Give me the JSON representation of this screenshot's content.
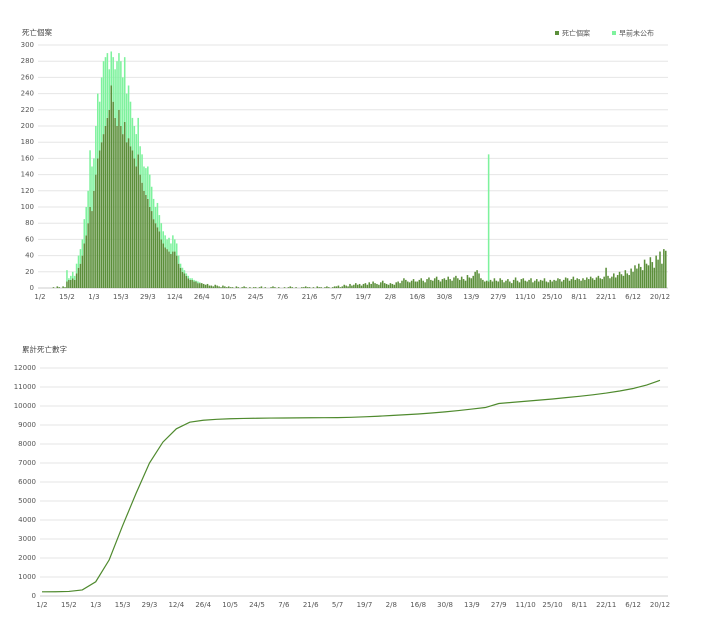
{
  "chart_data": [
    {
      "type": "bar",
      "title": "死亡個案",
      "stacked": true,
      "grid": true,
      "legend": "top-right",
      "ylim": [
        0,
        300
      ],
      "yticks": [
        0,
        20,
        40,
        60,
        80,
        100,
        120,
        140,
        160,
        180,
        200,
        220,
        240,
        260,
        280,
        300
      ],
      "categories": [
        "1/2",
        null,
        null,
        null,
        null,
        null,
        null,
        null,
        null,
        null,
        null,
        null,
        null,
        null,
        "15/2",
        null,
        null,
        null,
        null,
        null,
        null,
        null,
        null,
        null,
        null,
        null,
        null,
        null,
        "1/3",
        null,
        null,
        null,
        null,
        null,
        null,
        null,
        null,
        null,
        null,
        null,
        null,
        null,
        "15/3",
        null,
        null,
        null,
        null,
        null,
        null,
        null,
        null,
        null,
        null,
        null,
        null,
        null,
        "29/3",
        null,
        null,
        null,
        null,
        null,
        null,
        null,
        null,
        null,
        null,
        null,
        null,
        null,
        "12/4",
        null,
        null,
        null,
        null,
        null,
        null,
        null,
        null,
        null,
        null,
        null,
        null,
        null,
        "26/4",
        null,
        null,
        null,
        null,
        null,
        null,
        null,
        null,
        null,
        null,
        null,
        null,
        null,
        "10/5",
        null,
        null,
        null,
        null,
        null,
        null,
        null,
        null,
        null,
        null,
        null,
        null,
        null,
        "24/5",
        null,
        null,
        null,
        null,
        null,
        null,
        null,
        null,
        null,
        null,
        null,
        null,
        null,
        "7/6",
        null,
        null,
        null,
        null,
        null,
        null,
        null,
        null,
        null,
        null,
        null,
        null,
        null,
        "21/6",
        null,
        null,
        null,
        null,
        null,
        null,
        null,
        null,
        null,
        null,
        null,
        null,
        null,
        "5/7",
        null,
        null,
        null,
        null,
        null,
        null,
        null,
        null,
        null,
        null,
        null,
        null,
        null,
        "19/7",
        null,
        null,
        null,
        null,
        null,
        null,
        null,
        null,
        null,
        null,
        null,
        null,
        null,
        "2/8",
        null,
        null,
        null,
        null,
        null,
        null,
        null,
        null,
        null,
        null,
        null,
        null,
        null,
        "16/8",
        null,
        null,
        null,
        null,
        null,
        null,
        null,
        null,
        null,
        null,
        null,
        null,
        null,
        "30/8",
        null,
        null,
        null,
        null,
        null,
        null,
        null,
        null,
        null,
        null,
        null,
        null,
        null,
        "13/9",
        null,
        null,
        null,
        null,
        null,
        null,
        null,
        null,
        null,
        null,
        null,
        null,
        null,
        "27/9",
        null,
        null,
        null,
        null,
        null,
        null,
        null,
        null,
        null,
        null,
        null,
        null,
        null,
        "11/10",
        null,
        null,
        null,
        null,
        null,
        null,
        null,
        null,
        null,
        null,
        null,
        null,
        null,
        "25/10",
        null,
        null,
        null,
        null,
        null,
        null,
        null,
        null,
        null,
        null,
        null,
        null,
        null,
        "8/11",
        null,
        null,
        null,
        null,
        null,
        null,
        null,
        null,
        null,
        null,
        null,
        null,
        null,
        "22/11",
        null,
        null,
        null,
        null,
        null,
        null,
        null,
        null,
        null,
        null,
        null,
        null,
        null,
        "6/12",
        null,
        null,
        null,
        null,
        null,
        null,
        null,
        null,
        null,
        null,
        null,
        null,
        null,
        "20/12",
        null,
        null,
        null
      ],
      "series": [
        {
          "name": "死亡個案",
          "color": "#5b8f3a",
          "values": [
            0,
            0,
            0,
            0,
            0,
            0,
            0,
            1,
            0,
            2,
            1,
            0,
            2,
            1,
            8,
            10,
            10,
            12,
            10,
            18,
            25,
            30,
            40,
            55,
            65,
            80,
            100,
            95,
            120,
            140,
            160,
            170,
            180,
            190,
            200,
            210,
            220,
            250,
            230,
            210,
            200,
            220,
            200,
            190,
            205,
            180,
            185,
            175,
            170,
            160,
            150,
            165,
            140,
            130,
            120,
            115,
            110,
            100,
            95,
            85,
            80,
            75,
            70,
            60,
            55,
            50,
            48,
            45,
            42,
            45,
            45,
            40,
            30,
            25,
            20,
            18,
            15,
            12,
            10,
            10,
            8,
            8,
            6,
            6,
            6,
            5,
            4,
            5,
            3,
            3,
            2,
            4,
            3,
            2,
            1,
            3,
            2,
            1,
            2,
            1,
            1,
            0,
            2,
            1,
            0,
            1,
            2,
            1,
            0,
            1,
            0,
            1,
            1,
            0,
            1,
            2,
            0,
            1,
            0,
            0,
            1,
            2,
            1,
            0,
            1,
            0,
            0,
            1,
            0,
            1,
            2,
            1,
            0,
            1,
            0,
            0,
            1,
            1,
            2,
            1,
            1,
            0,
            1,
            0,
            2,
            1,
            1,
            0,
            1,
            2,
            1,
            0,
            1,
            2,
            2,
            3,
            1,
            2,
            4,
            3,
            2,
            5,
            3,
            4,
            6,
            4,
            5,
            3,
            5,
            6,
            4,
            7,
            5,
            8,
            6,
            5,
            4,
            7,
            9,
            6,
            5,
            4,
            6,
            5,
            4,
            7,
            8,
            6,
            9,
            12,
            10,
            8,
            7,
            9,
            11,
            8,
            8,
            10,
            12,
            9,
            7,
            11,
            13,
            10,
            9,
            12,
            14,
            10,
            8,
            11,
            12,
            10,
            14,
            11,
            9,
            13,
            15,
            12,
            10,
            14,
            11,
            9,
            16,
            13,
            12,
            15,
            20,
            22,
            18,
            12,
            10,
            8,
            9,
            8,
            10,
            8,
            12,
            9,
            8,
            12,
            10,
            7,
            9,
            11,
            8,
            6,
            10,
            13,
            9,
            7,
            11,
            12,
            9,
            8,
            10,
            12,
            7,
            9,
            11,
            8,
            10,
            9,
            12,
            8,
            7,
            10,
            8,
            10,
            9,
            12,
            11,
            8,
            10,
            13,
            12,
            9,
            11,
            14,
            10,
            12,
            11,
            9,
            12,
            10,
            13,
            11,
            14,
            12,
            10,
            13,
            15,
            12,
            11,
            14,
            25,
            15,
            12,
            14,
            18,
            13,
            16,
            20,
            17,
            15,
            22,
            18,
            16,
            24,
            20,
            28,
            24,
            30,
            26,
            22,
            35,
            30,
            28,
            38,
            32,
            25,
            40,
            35,
            45,
            30,
            48,
            46
          ]
        },
        {
          "name": "早前未公布",
          "color": "#7ef29d",
          "values": [
            0,
            0,
            0,
            0,
            0,
            0,
            0,
            0,
            0,
            0,
            0,
            0,
            0,
            0,
            14,
            2,
            5,
            8,
            5,
            12,
            15,
            18,
            20,
            30,
            35,
            40,
            70,
            55,
            40,
            60,
            80,
            60,
            80,
            90,
            85,
            80,
            50,
            42,
            55,
            60,
            80,
            70,
            80,
            70,
            80,
            60,
            65,
            55,
            40,
            40,
            40,
            45,
            35,
            35,
            30,
            33,
            40,
            40,
            30,
            25,
            20,
            30,
            20,
            20,
            15,
            15,
            12,
            17,
            13,
            20,
            15,
            15,
            10,
            5,
            5,
            4,
            3,
            3,
            2,
            2,
            2,
            1,
            2,
            1,
            0,
            0,
            0,
            0,
            0,
            0,
            0,
            0,
            0,
            0,
            0,
            0,
            0,
            0,
            0,
            0,
            0,
            0,
            0,
            0,
            0,
            0,
            0,
            0,
            0,
            0,
            0,
            0,
            0,
            0,
            0,
            0,
            0,
            0,
            0,
            0,
            0,
            0,
            0,
            0,
            0,
            0,
            0,
            0,
            0,
            0,
            0,
            0,
            0,
            0,
            0,
            0,
            0,
            0,
            0,
            0,
            0,
            0,
            0,
            0,
            0,
            0,
            0,
            0,
            0,
            0,
            0,
            0,
            0,
            0,
            0,
            0,
            0,
            0,
            0,
            0,
            0,
            0,
            0,
            0,
            0,
            0,
            0,
            0,
            0,
            0,
            0,
            0,
            0,
            0,
            0,
            0,
            0,
            0,
            0,
            0,
            0,
            0,
            0,
            0,
            0,
            0,
            0,
            0,
            0,
            0,
            0,
            0,
            0,
            0,
            0,
            0,
            0,
            0,
            0,
            0,
            0,
            0,
            0,
            0,
            0,
            0,
            0,
            0,
            0,
            0,
            0,
            0,
            0,
            0,
            0,
            0,
            0,
            0,
            0,
            0,
            0,
            0,
            0,
            0,
            0,
            0,
            0,
            0,
            0,
            0,
            0,
            0,
            0,
            157,
            0,
            0,
            0,
            0,
            0,
            0,
            0,
            0,
            0,
            0,
            0,
            0,
            0,
            0,
            0,
            0,
            0,
            0,
            0,
            0,
            0,
            0,
            0,
            0,
            0,
            0,
            0,
            0,
            0,
            0,
            0,
            0,
            0,
            0,
            0,
            0,
            0,
            0,
            0,
            0,
            0,
            0,
            0,
            0,
            0,
            0,
            0,
            0,
            0,
            0,
            0,
            0,
            0,
            0,
            0,
            0,
            0,
            0,
            0,
            0,
            0,
            0,
            0,
            0,
            0,
            0,
            0,
            0,
            0,
            0,
            0,
            0,
            0,
            0,
            0,
            0,
            0,
            0,
            0,
            0,
            0,
            0,
            0,
            0,
            0,
            0,
            0,
            0,
            0,
            0,
            0,
            0
          ]
        }
      ]
    },
    {
      "type": "line",
      "title": "累計死亡數字",
      "grid": true,
      "color": "#4f8a2e",
      "ylim": [
        0,
        12000
      ],
      "yticks": [
        0,
        1000,
        2000,
        3000,
        4000,
        5000,
        6000,
        7000,
        8000,
        9000,
        10000,
        11000,
        12000
      ],
      "categories": [
        "1/2",
        null,
        "15/2",
        null,
        "1/3",
        null,
        "15/3",
        null,
        "29/3",
        null,
        "12/4",
        null,
        "26/4",
        null,
        "10/5",
        null,
        "24/5",
        null,
        "7/6",
        null,
        "21/6",
        null,
        "5/7",
        null,
        "19/7",
        null,
        "2/8",
        null,
        "16/8",
        null,
        "30/8",
        null,
        "13/9",
        null,
        "27/9",
        null,
        "11/10",
        null,
        "25/10",
        null,
        "8/11",
        null,
        "22/11",
        null,
        "6/12",
        null,
        "20/12"
      ],
      "values": [
        220,
        225,
        240,
        320,
        750,
        1900,
        3700,
        5400,
        7000,
        8100,
        8800,
        9150,
        9250,
        9300,
        9330,
        9345,
        9355,
        9365,
        9370,
        9375,
        9380,
        9385,
        9390,
        9405,
        9430,
        9460,
        9500,
        9540,
        9580,
        9630,
        9690,
        9760,
        9840,
        9920,
        10130,
        10190,
        10250,
        10310,
        10370,
        10440,
        10510,
        10590,
        10680,
        10790,
        10920,
        11100,
        11350
      ]
    }
  ]
}
